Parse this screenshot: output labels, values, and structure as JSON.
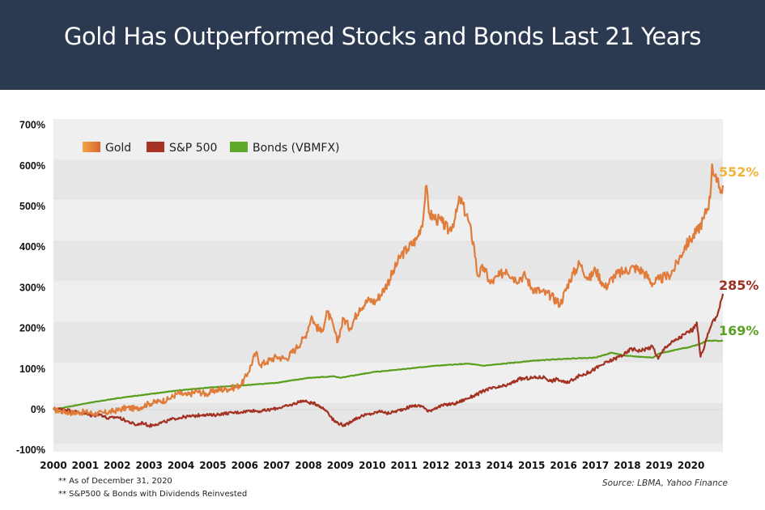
{
  "header": {
    "title": "Gold Has Outperformed Stocks and Bonds Last 21 Years"
  },
  "footnotes": [
    "** As of December 31, 2020",
    "** S&P500 & Bonds with Dividends Reinvested"
  ],
  "source": "Source: LBMA, Yahoo Finance",
  "chart_data": {
    "type": "line",
    "title": "Gold Has Outperformed Stocks and Bonds Last 21 Years",
    "xlabel": "",
    "ylabel": "",
    "ylim": [
      -100,
      700
    ],
    "xlim": [
      2000,
      2021
    ],
    "yticks": [
      "700%",
      "600%",
      "500%",
      "400%",
      "300%",
      "200%",
      "100%",
      "0%",
      "-100%"
    ],
    "ytick_values": [
      700,
      600,
      500,
      400,
      300,
      200,
      100,
      0,
      -100
    ],
    "xticks": [
      "2000",
      "2001",
      "2002",
      "2003",
      "2004",
      "2005",
      "2006",
      "2007",
      "2008",
      "2009",
      "2010",
      "2011",
      "2012",
      "2013",
      "2014",
      "2015",
      "2016",
      "2017",
      "2018",
      "2019",
      "2020"
    ],
    "grid": "horizontal alternating bands",
    "legend_position": "top-left",
    "series": [
      {
        "name": "Gold",
        "color": "#e07b39",
        "legend_color_start": "#f2a54a",
        "legend_color_end": "#d9652e",
        "end_label": "552%",
        "end_label_color": "#f0b43c",
        "x": [
          2000.0,
          2000.3,
          2000.6,
          2001.0,
          2001.3,
          2001.6,
          2002.0,
          2002.3,
          2002.6,
          2003.0,
          2003.3,
          2003.6,
          2003.9,
          2004.2,
          2004.5,
          2004.8,
          2005.1,
          2005.4,
          2005.7,
          2005.9,
          2006.1,
          2006.35,
          2006.5,
          2006.7,
          2007.0,
          2007.3,
          2007.6,
          2007.9,
          2008.1,
          2008.2,
          2008.4,
          2008.6,
          2008.8,
          2008.9,
          2009.1,
          2009.3,
          2009.6,
          2009.9,
          2010.1,
          2010.4,
          2010.7,
          2010.9,
          2011.1,
          2011.4,
          2011.6,
          2011.68,
          2011.8,
          2012.0,
          2012.2,
          2012.4,
          2012.6,
          2012.75,
          2013.0,
          2013.2,
          2013.3,
          2013.5,
          2013.7,
          2014.0,
          2014.2,
          2014.5,
          2014.8,
          2015.0,
          2015.3,
          2015.6,
          2015.9,
          2016.2,
          2016.5,
          2016.8,
          2017.0,
          2017.3,
          2017.6,
          2017.9,
          2018.2,
          2018.5,
          2018.8,
          2019.0,
          2019.3,
          2019.5,
          2019.8,
          2020.0,
          2020.2,
          2020.4,
          2020.6,
          2020.66,
          2020.8,
          2020.95,
          2021.0
        ],
        "y": [
          0,
          -5,
          -8,
          -6,
          -10,
          -8,
          -2,
          5,
          2,
          15,
          20,
          25,
          40,
          35,
          45,
          38,
          48,
          50,
          55,
          62,
          90,
          140,
          110,
          118,
          130,
          125,
          150,
          180,
          230,
          210,
          190,
          240,
          200,
          165,
          225,
          200,
          250,
          270,
          265,
          300,
          345,
          380,
          395,
          420,
          470,
          550,
          480,
          470,
          460,
          440,
          470,
          520,
          470,
          400,
          330,
          350,
          310,
          330,
          345,
          320,
          330,
          300,
          290,
          280,
          260,
          320,
          360,
          320,
          345,
          300,
          330,
          340,
          350,
          340,
          310,
          320,
          330,
          350,
          400,
          420,
          440,
          470,
          520,
          604,
          560,
          540,
          552
        ]
      },
      {
        "name": "S&P 500",
        "color": "#a33222",
        "legend_color": "#a63424",
        "end_label": "285%",
        "end_label_color": "#9c2f22",
        "x": [
          2000.0,
          2000.3,
          2000.6,
          2000.9,
          2001.2,
          2001.5,
          2001.7,
          2002.0,
          2002.3,
          2002.6,
          2002.8,
          2003.0,
          2003.2,
          2003.5,
          2003.8,
          2004.1,
          2004.4,
          2004.7,
          2005.0,
          2005.3,
          2005.6,
          2005.9,
          2006.2,
          2006.5,
          2006.8,
          2007.1,
          2007.4,
          2007.8,
          2008.0,
          2008.3,
          2008.6,
          2008.8,
          2009.0,
          2009.15,
          2009.4,
          2009.7,
          2010.0,
          2010.3,
          2010.45,
          2010.7,
          2011.0,
          2011.3,
          2011.6,
          2011.75,
          2012.0,
          2012.3,
          2012.6,
          2013.0,
          2013.3,
          2013.6,
          2014.0,
          2014.3,
          2014.6,
          2015.0,
          2015.4,
          2015.6,
          2015.8,
          2016.1,
          2016.4,
          2016.8,
          2017.2,
          2017.6,
          2018.0,
          2018.1,
          2018.4,
          2018.8,
          2018.97,
          2019.2,
          2019.5,
          2019.8,
          2020.1,
          2020.18,
          2020.3,
          2020.6,
          2020.85,
          2021.0
        ],
        "y": [
          0,
          2,
          -4,
          -8,
          -15,
          -12,
          -22,
          -18,
          -28,
          -38,
          -32,
          -40,
          -36,
          -30,
          -22,
          -18,
          -16,
          -12,
          -14,
          -10,
          -8,
          -6,
          -2,
          -4,
          0,
          5,
          10,
          22,
          18,
          12,
          -5,
          -28,
          -35,
          -40,
          -25,
          -15,
          -10,
          -3,
          -10,
          -5,
          2,
          10,
          8,
          -5,
          5,
          12,
          15,
          28,
          38,
          50,
          55,
          62,
          75,
          78,
          80,
          70,
          75,
          65,
          80,
          92,
          110,
          125,
          140,
          150,
          145,
          155,
          125,
          155,
          170,
          185,
          200,
          215,
          130,
          200,
          240,
          285
        ]
      },
      {
        "name": "Bonds (VBMFX)",
        "color": "#5a9e1e",
        "legend_color": "#5fa82a",
        "end_label": "169%",
        "end_label_color": "#5aa020",
        "x": [
          2000.0,
          2001.0,
          2002.0,
          2003.0,
          2004.0,
          2005.0,
          2006.0,
          2007.0,
          2008.0,
          2008.8,
          2009.0,
          2010.0,
          2011.0,
          2012.0,
          2013.0,
          2013.5,
          2014.0,
          2015.0,
          2016.0,
          2017.0,
          2017.5,
          2018.0,
          2018.8,
          2019.0,
          2020.0,
          2020.3,
          2020.5,
          2021.0
        ],
        "y": [
          0,
          15,
          28,
          38,
          48,
          55,
          60,
          66,
          78,
          82,
          78,
          92,
          100,
          108,
          113,
          108,
          112,
          120,
          125,
          128,
          140,
          132,
          128,
          138,
          155,
          162,
          170,
          169
        ]
      }
    ]
  }
}
